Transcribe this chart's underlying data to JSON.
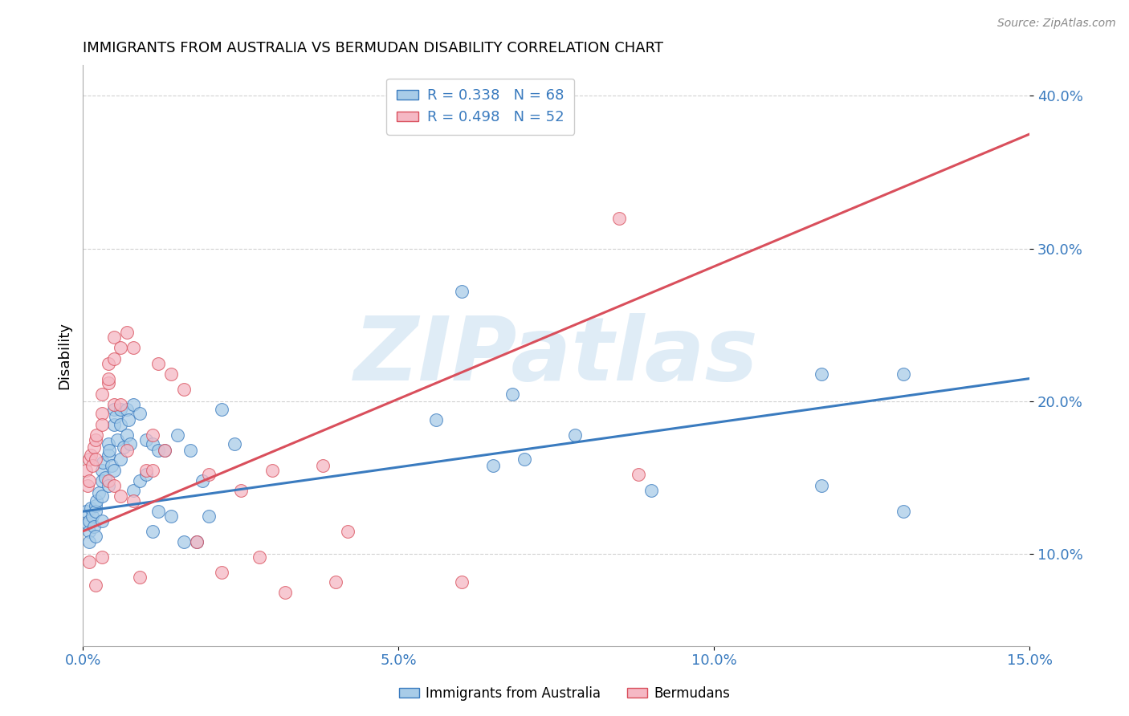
{
  "title": "IMMIGRANTS FROM AUSTRALIA VS BERMUDAN DISABILITY CORRELATION CHART",
  "source": "Source: ZipAtlas.com",
  "ylabel_label": "Disability",
  "watermark": "ZIPatlas",
  "xlim": [
    0.0,
    0.15
  ],
  "ylim": [
    0.04,
    0.42
  ],
  "xticks": [
    0.0,
    0.05,
    0.1,
    0.15
  ],
  "yticks": [
    0.1,
    0.2,
    0.3,
    0.4
  ],
  "blue_R": 0.338,
  "blue_N": 68,
  "pink_R": 0.498,
  "pink_N": 52,
  "blue_color": "#a8cce8",
  "pink_color": "#f5b8c4",
  "blue_line_color": "#3a7bbf",
  "pink_line_color": "#d94f5c",
  "legend_blue_label": "Immigrants from Australia",
  "legend_pink_label": "Bermudans",
  "blue_x": [
    0.0005,
    0.0008,
    0.001,
    0.001,
    0.001,
    0.0012,
    0.0015,
    0.0018,
    0.002,
    0.002,
    0.002,
    0.0022,
    0.0025,
    0.003,
    0.003,
    0.003,
    0.003,
    0.0032,
    0.0035,
    0.004,
    0.004,
    0.004,
    0.0042,
    0.0045,
    0.005,
    0.005,
    0.005,
    0.0052,
    0.0055,
    0.006,
    0.006,
    0.006,
    0.0065,
    0.007,
    0.007,
    0.0072,
    0.0075,
    0.008,
    0.008,
    0.009,
    0.009,
    0.01,
    0.01,
    0.011,
    0.011,
    0.012,
    0.012,
    0.013,
    0.014,
    0.015,
    0.016,
    0.017,
    0.018,
    0.019,
    0.02,
    0.022,
    0.024,
    0.056,
    0.06,
    0.065,
    0.068,
    0.07,
    0.078,
    0.09,
    0.117,
    0.117,
    0.13,
    0.13
  ],
  "blue_y": [
    0.128,
    0.12,
    0.115,
    0.122,
    0.108,
    0.13,
    0.125,
    0.118,
    0.132,
    0.128,
    0.112,
    0.135,
    0.14,
    0.155,
    0.148,
    0.138,
    0.122,
    0.16,
    0.15,
    0.172,
    0.165,
    0.145,
    0.168,
    0.158,
    0.195,
    0.185,
    0.155,
    0.19,
    0.175,
    0.195,
    0.185,
    0.162,
    0.17,
    0.195,
    0.178,
    0.188,
    0.172,
    0.198,
    0.142,
    0.192,
    0.148,
    0.175,
    0.152,
    0.172,
    0.115,
    0.168,
    0.128,
    0.168,
    0.125,
    0.178,
    0.108,
    0.168,
    0.108,
    0.148,
    0.125,
    0.195,
    0.172,
    0.188,
    0.272,
    0.158,
    0.205,
    0.162,
    0.178,
    0.142,
    0.145,
    0.218,
    0.128,
    0.218
  ],
  "pink_x": [
    0.0005,
    0.0008,
    0.001,
    0.001,
    0.001,
    0.0012,
    0.0015,
    0.0018,
    0.002,
    0.002,
    0.002,
    0.0022,
    0.003,
    0.003,
    0.003,
    0.003,
    0.004,
    0.004,
    0.004,
    0.004,
    0.005,
    0.005,
    0.005,
    0.005,
    0.006,
    0.006,
    0.006,
    0.007,
    0.007,
    0.008,
    0.008,
    0.009,
    0.01,
    0.011,
    0.011,
    0.012,
    0.013,
    0.014,
    0.016,
    0.018,
    0.02,
    0.022,
    0.025,
    0.028,
    0.03,
    0.032,
    0.038,
    0.04,
    0.042,
    0.06,
    0.085,
    0.088
  ],
  "pink_y": [
    0.155,
    0.145,
    0.162,
    0.148,
    0.095,
    0.165,
    0.158,
    0.17,
    0.175,
    0.162,
    0.08,
    0.178,
    0.192,
    0.205,
    0.185,
    0.098,
    0.212,
    0.225,
    0.215,
    0.148,
    0.228,
    0.242,
    0.198,
    0.145,
    0.235,
    0.198,
    0.138,
    0.245,
    0.168,
    0.235,
    0.135,
    0.085,
    0.155,
    0.178,
    0.155,
    0.225,
    0.168,
    0.218,
    0.208,
    0.108,
    0.152,
    0.088,
    0.142,
    0.098,
    0.155,
    0.075,
    0.158,
    0.082,
    0.115,
    0.082,
    0.32,
    0.152
  ]
}
